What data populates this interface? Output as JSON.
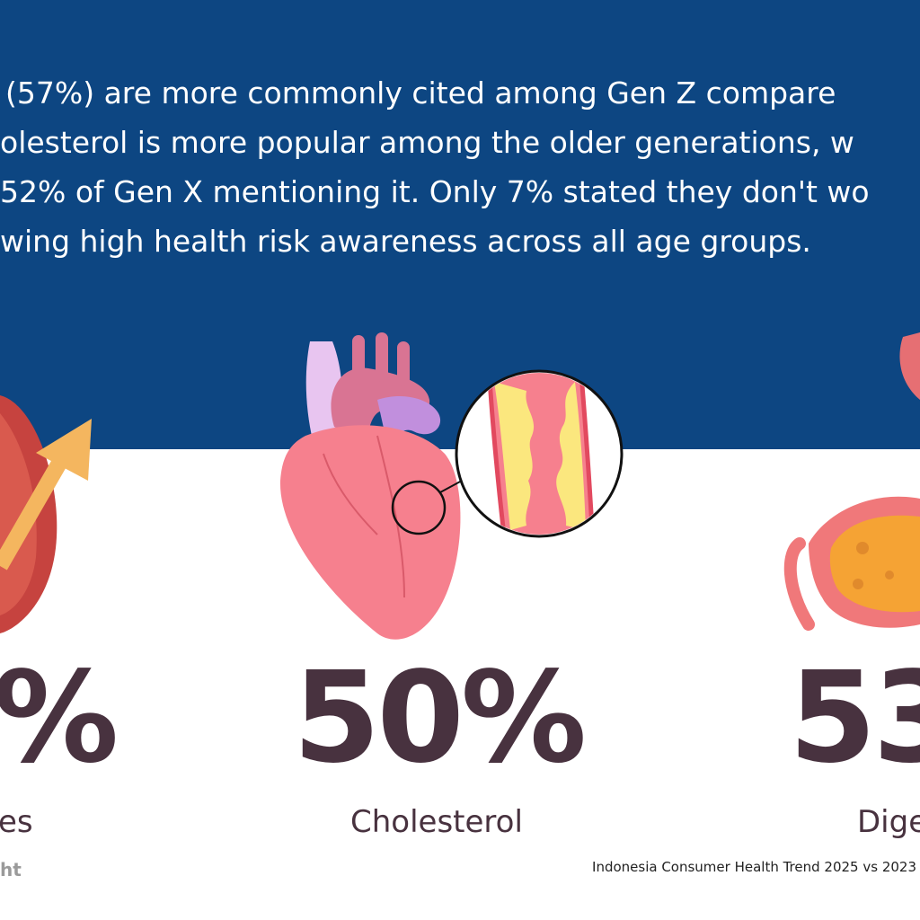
{
  "intro": {
    "line1": "(57%) are more commonly cited among Gen Z compare",
    "line2": "olesterol is more popular among the older generations, w",
    "line3": "52% of Gen X mentioning it. Only 7% stated they don't wo",
    "line4": "wing high health risk awareness across all age groups."
  },
  "stats": [
    {
      "value": "%",
      "label": "es",
      "icon": "heart-arrow-icon"
    },
    {
      "value": "50%",
      "label": "Cholesterol",
      "icon": "heart-cholesterol-icon"
    },
    {
      "value": "53",
      "label": "Dige",
      "icon": "stomach-icon"
    }
  ],
  "footer": {
    "brand_partial": "ht",
    "source": "Indonesia Consumer Health Trend 2025 vs 2023"
  },
  "colors": {
    "band": "#0d4682",
    "stat_text": "#48323f",
    "heart": "#f3717e",
    "plaque": "#fbe77e"
  }
}
